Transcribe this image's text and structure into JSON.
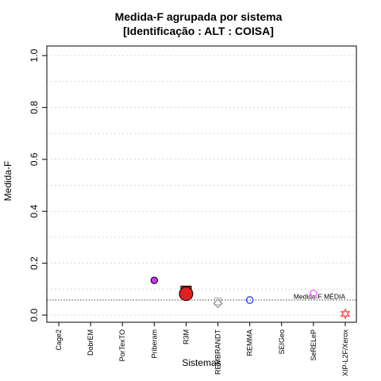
{
  "chart_data": {
    "type": "scatter",
    "title_line1": "Medida-F agrupada por sistema",
    "title_line2": "[Identificação : ALT : COISA]",
    "xlabel": "Sistemas",
    "ylabel": "Medida-F",
    "ylim": [
      0,
      1
    ],
    "yticks": [
      "0.0",
      "0.2",
      "0.4",
      "0.6",
      "0.8",
      "1.0"
    ],
    "grid": "horizontal-dotted",
    "categories": [
      "Cage2",
      "DobrEM",
      "PorTexTO",
      "Priberam",
      "R3M",
      "REMBRANDT",
      "REMMA",
      "SEIGeo",
      "SeRELeP",
      "XIP-L2F/Xerox"
    ],
    "reference_line": {
      "label": "Medida-F MÉDIA",
      "value": 0.058
    },
    "points": [
      {
        "category": "Priberam",
        "value": 0.134,
        "shape": "circle",
        "fill": "#cc33ff",
        "stroke": "#000000",
        "size": "small"
      },
      {
        "category": "R3M",
        "value": 0.092,
        "shape": "square",
        "fill": "#e02020",
        "stroke": "#000000",
        "size": "medium"
      },
      {
        "category": "R3M",
        "value": 0.082,
        "shape": "circle",
        "fill": "#e02020",
        "stroke": "#000000",
        "size": "large"
      },
      {
        "category": "REMBRANDT",
        "value": 0.053,
        "shape": "square",
        "fill": "none",
        "stroke": "#bbbbbb",
        "size": "small"
      },
      {
        "category": "REMBRANDT",
        "value": 0.045,
        "shape": "diamond",
        "fill": "none",
        "stroke": "#999999",
        "size": "small"
      },
      {
        "category": "REMMA",
        "value": 0.058,
        "shape": "circle",
        "fill": "none",
        "stroke": "#2244ee",
        "size": "small"
      },
      {
        "category": "SeRELeP",
        "value": 0.083,
        "shape": "circle",
        "fill": "none",
        "stroke": "#ee66ee",
        "size": "small"
      },
      {
        "category": "XIP-L2F/Xerox",
        "value": 0.005,
        "shape": "star",
        "fill": "none",
        "stroke": "#ff4444",
        "size": "small"
      }
    ]
  }
}
